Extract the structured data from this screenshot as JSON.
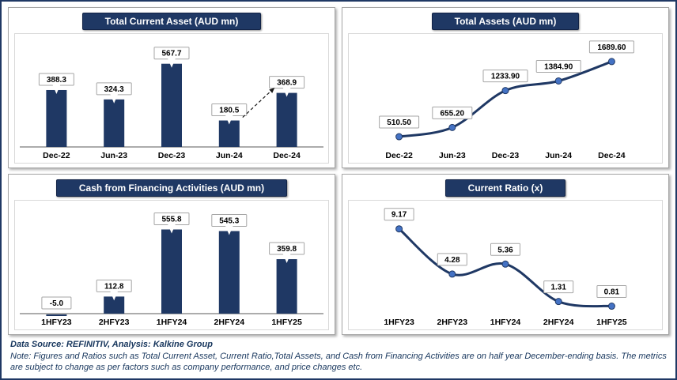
{
  "colors": {
    "navy": "#1F3864",
    "bar": "#1F3864",
    "marker": "#4472C4",
    "label_border": "#A6A6A6",
    "axis": "#595959",
    "arrow": "#1a1a1a"
  },
  "chart_data": [
    {
      "type": "bar",
      "title": "Total Current Asset (AUD mn)",
      "categories": [
        "Dec-22",
        "Jun-23",
        "Dec-23",
        "Jun-24",
        "Dec-24"
      ],
      "values": [
        388.3,
        324.3,
        567.7,
        180.5,
        368.9
      ],
      "labels": [
        "388.3",
        "324.3",
        "567.7",
        "180.5",
        "368.9"
      ],
      "ylim": [
        0,
        620
      ],
      "grid": false,
      "legend": "none",
      "annotation": {
        "type": "dashed-arrow",
        "from": "Jun-24",
        "to": "Dec-24"
      }
    },
    {
      "type": "line",
      "title": "Total Assets (AUD mn)",
      "categories": [
        "Dec-22",
        "Jun-23",
        "Dec-23",
        "Jun-24",
        "Dec-24"
      ],
      "values": [
        510.5,
        655.2,
        1233.9,
        1384.9,
        1689.6
      ],
      "labels": [
        "510.50",
        "655.20",
        "1233.90",
        "1384.90",
        "1689.60"
      ],
      "ylim": [
        350,
        1800
      ],
      "grid": false,
      "legend": "none"
    },
    {
      "type": "bar",
      "title": "Cash from Financing Activities (AUD mn)",
      "categories": [
        "1HFY23",
        "2HFY23",
        "1HFY24",
        "2HFY24",
        "1HFY25"
      ],
      "values": [
        -5.0,
        112.8,
        555.8,
        545.3,
        359.8
      ],
      "labels": [
        "-5.0",
        "112.8",
        "555.8",
        "545.3",
        "359.8"
      ],
      "ylim": [
        0,
        600
      ],
      "grid": false,
      "legend": "none"
    },
    {
      "type": "line",
      "title": "Current Ratio (x)",
      "categories": [
        "1HFY23",
        "2HFY23",
        "1HFY24",
        "2HFY24",
        "1HFY25"
      ],
      "values": [
        9.17,
        4.28,
        5.36,
        1.31,
        0.81
      ],
      "labels": [
        "9.17",
        "4.28",
        "5.36",
        "1.31",
        "0.81"
      ],
      "ylim": [
        0,
        10
      ],
      "grid": false,
      "legend": "none"
    }
  ],
  "footer": {
    "source": "Data Source: REFINITIV, Analysis: Kalkine Group",
    "note": "Note: Figures and Ratios such as Total Current Asset, Current Ratio,Total Assets, and Cash from Financing Activities are on half year December-ending basis. The metrics are subject to change as per factors such as company performance, and price changes etc."
  }
}
